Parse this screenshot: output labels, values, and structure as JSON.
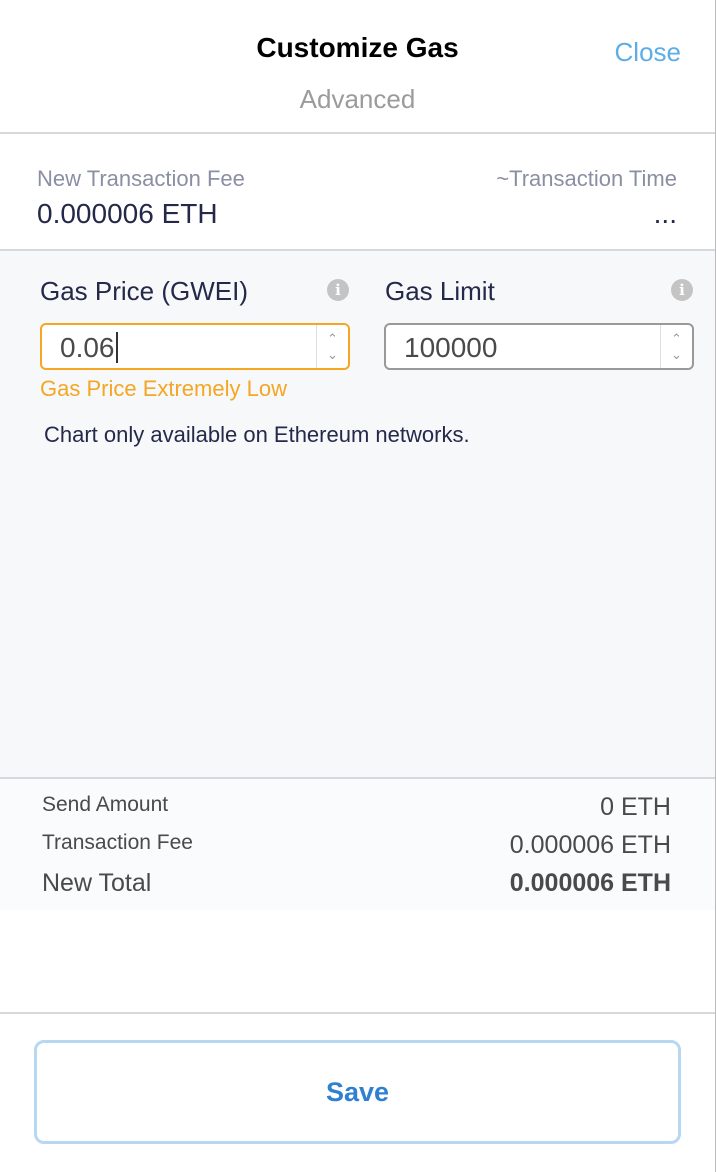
{
  "header": {
    "title": "Customize Gas",
    "subtitle": "Advanced",
    "close_label": "Close"
  },
  "fee_summary": {
    "fee_label": "New Transaction Fee",
    "fee_value": "0.000006 ETH",
    "time_label": "~Transaction Time",
    "time_value": "..."
  },
  "advanced": {
    "gas_price": {
      "label": "Gas Price (GWEI)",
      "value": "0.06",
      "warning": "Gas Price Extremely Low",
      "icon": "info-icon"
    },
    "gas_limit": {
      "label": "Gas Limit",
      "value": "100000",
      "icon": "info-icon"
    },
    "chart_notice": "Chart only available on Ethereum networks."
  },
  "totals": {
    "send_amount_label": "Send Amount",
    "send_amount_value": "0 ETH",
    "fee_label": "Transaction Fee",
    "fee_value": "0.000006 ETH",
    "total_label": "New Total",
    "total_value": "0.000006 ETH"
  },
  "footer": {
    "save_label": "Save"
  },
  "colors": {
    "warning": "#f5a623",
    "link": "#5daee6",
    "primary": "#2f80d1"
  }
}
